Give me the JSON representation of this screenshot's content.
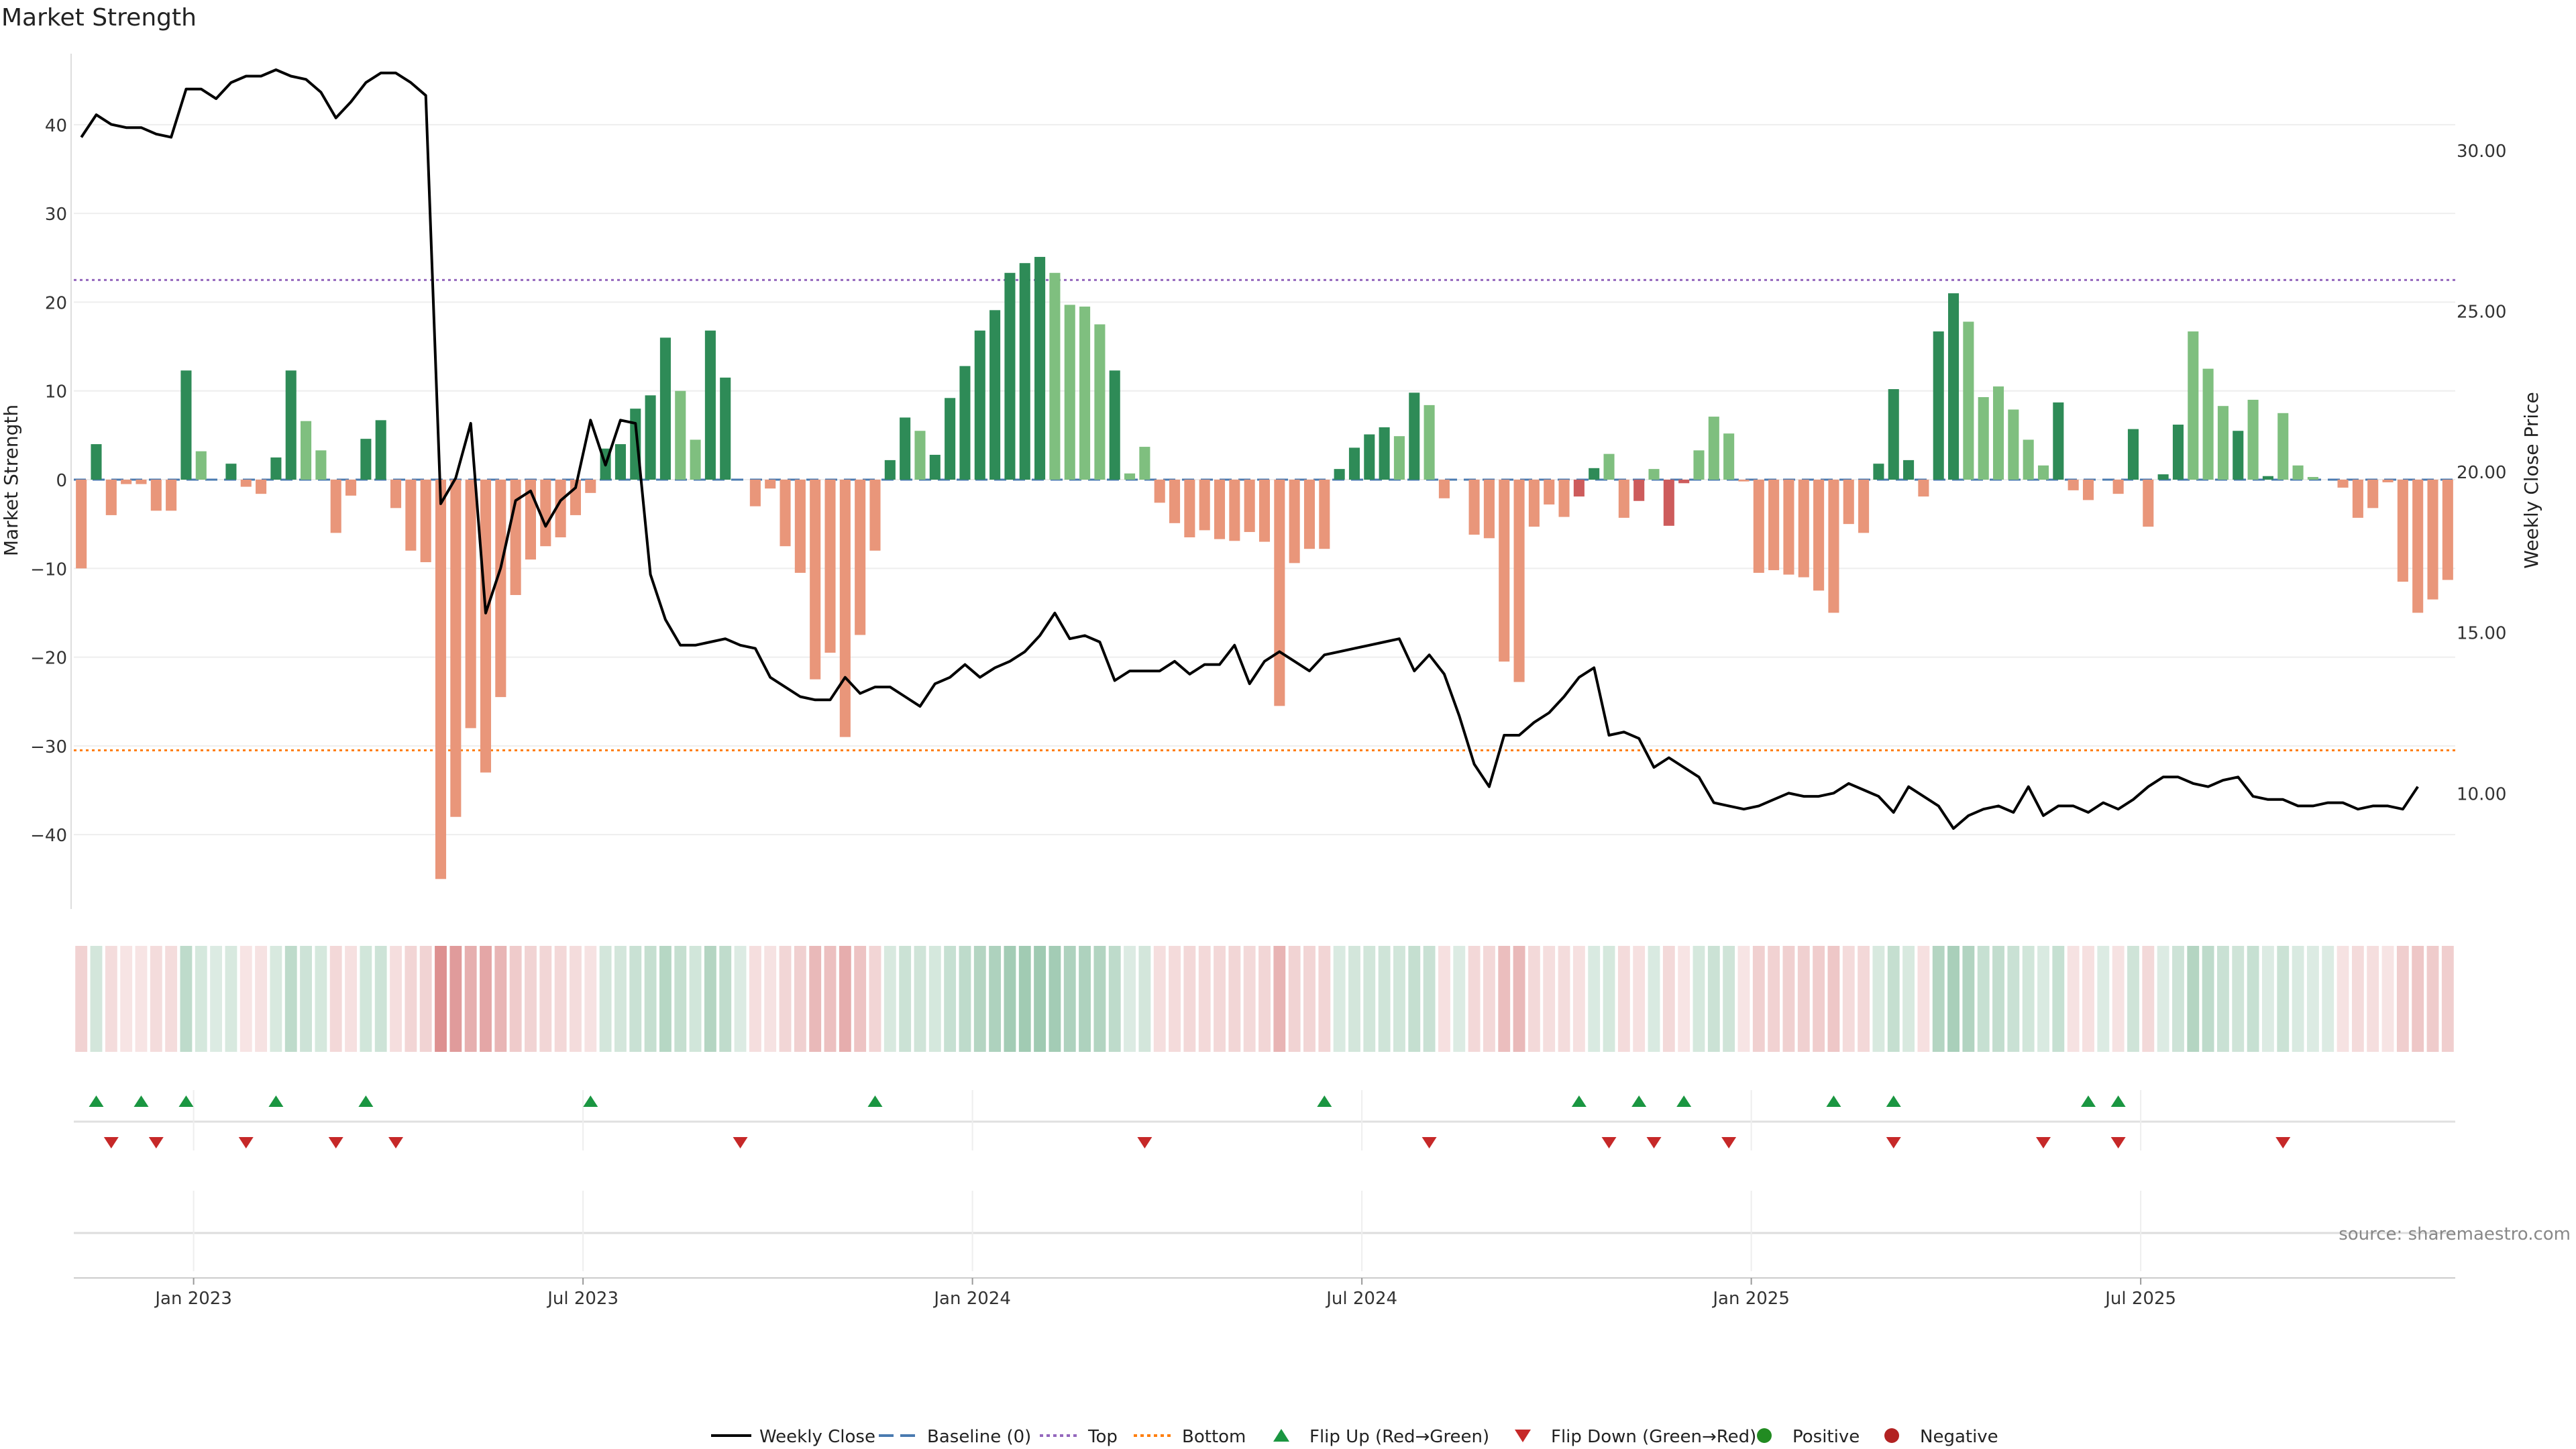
{
  "title": "Market Strength",
  "source_label": "source: sharemaestro.com",
  "colors": {
    "strong_green": "#2e8b57",
    "light_green": "#7fbf7f",
    "strong_red": "#cd5c5c",
    "light_red": "#e9967a",
    "price_line": "#000000",
    "baseline": "#4a7ab0",
    "top_line": "#9467bd",
    "bottom_line": "#ff7f0e",
    "flip_up": "#1a9641",
    "flip_down": "#c62828",
    "positive": "#228b22",
    "negative": "#b22222"
  },
  "legend": [
    {
      "label": "Weekly Close",
      "icon": "solid-line",
      "color": "#000000"
    },
    {
      "label": "Baseline (0)",
      "icon": "dashed-line",
      "color": "#4a7ab0"
    },
    {
      "label": "Top",
      "icon": "dotted-line",
      "color": "#9467bd"
    },
    {
      "label": "Bottom",
      "icon": "dotted-line",
      "color": "#ff7f0e"
    },
    {
      "label": "Flip Up (Red→Green)",
      "icon": "triangle-up",
      "color": "#1a9641"
    },
    {
      "label": "Flip Down (Green→Red)",
      "icon": "triangle-down",
      "color": "#c62828"
    },
    {
      "label": "Positive",
      "icon": "circle",
      "color": "#228b22"
    },
    {
      "label": "Negative",
      "icon": "circle",
      "color": "#b22222"
    }
  ],
  "chart_data": {
    "type": "bar",
    "title": "Market Strength",
    "ylabel": "Market Strength",
    "y2label": "Weekly Close Price",
    "ylim": [
      -48,
      48
    ],
    "y2lim": [
      6.5,
      33
    ],
    "yticks": [
      -40,
      -30,
      -20,
      -10,
      0,
      10,
      20,
      30,
      40
    ],
    "y2ticks": [
      "10.00",
      "15.00",
      "20.00",
      "25.00",
      "30.00"
    ],
    "top_level": 22.5,
    "bottom_level": -30.5,
    "x_ticks": [
      {
        "label": "Jan 2023",
        "week": 7.5
      },
      {
        "label": "Jul 2023",
        "week": 33.5
      },
      {
        "label": "Jan 2024",
        "week": 59.5
      },
      {
        "label": "Jul 2024",
        "week": 85.5
      },
      {
        "label": "Jan 2025",
        "week": 111.5
      },
      {
        "label": "Jul 2025",
        "week": 137.5
      }
    ],
    "series": [
      {
        "name": "Market Strength",
        "values": [
          -10,
          4,
          -4,
          -0.5,
          -0.5,
          -3.5,
          -3.5,
          12.3,
          3.2,
          0,
          1.8,
          -0.8,
          -1.6,
          2.5,
          12.3,
          6.6,
          3.3,
          -6,
          -1.8,
          4.6,
          6.7,
          -3.2,
          -8,
          -9.3,
          -45,
          -38,
          -28,
          -33,
          -24.5,
          -13,
          -9,
          -7.5,
          -6.5,
          -4,
          -1.5,
          3.5,
          4,
          8,
          9.5,
          16,
          10,
          4.5,
          16.8,
          11.5,
          0,
          -3,
          -1,
          -7.5,
          -10.5,
          -22.5,
          -19.5,
          -29,
          -17.5,
          -8,
          2.2,
          7,
          5.5,
          2.8,
          9.2,
          12.8,
          16.8,
          19.1,
          23.3,
          24.4,
          25.1,
          23.3,
          19.7,
          19.5,
          17.5,
          12.3,
          0.7,
          3.7,
          -2.6,
          -4.9,
          -6.5,
          -5.7,
          -6.7,
          -6.9,
          -5.9,
          -7,
          -25.5,
          -9.4,
          -7.8,
          -7.8,
          1.2,
          3.6,
          5.1,
          5.9,
          4.9,
          9.8,
          8.4,
          -2.1,
          0,
          -6.2,
          -6.6,
          -20.5,
          -22.8,
          -5.3,
          -2.8,
          -4.2,
          -1.9,
          1.3,
          2.9,
          -4.3,
          -2.4,
          1.2,
          -5.2,
          -0.4,
          3.3,
          7.1,
          5.2,
          -0.2,
          -10.5,
          -10.2,
          -10.7,
          -11,
          -12.5,
          -15,
          -5,
          -6,
          1.8,
          10.2,
          2.2,
          -1.9,
          16.7,
          21,
          17.8,
          9.3,
          10.5,
          7.9,
          4.5,
          1.6,
          8.7,
          -1.2,
          -2.3,
          0,
          -1.6,
          5.7,
          -5.3,
          0.6,
          6.2,
          16.7,
          12.5,
          8.3,
          5.5,
          9,
          0.4,
          7.5,
          1.6,
          0.3,
          0,
          -0.9,
          -4.3,
          -3.2,
          -0.3,
          -11.5,
          -15,
          -13.5,
          -11.3
        ],
        "kinds": "LGLLLLLGLGGLLGGLLLLGGLLLLLLLLLLLLLLGGGGGLLGGGLLLLLLLLLGGLGGGGGGGGLLLLGLLLLLLLLLLLLLLGGGGLGLLLLLLLLLLGGLLGLGGLLLLLLLLLLLLGGGLGGLLLLLLGLLLLGLGGLLLGLGLLLLLLLLLLL"
      },
      {
        "name": "Weekly Close",
        "values": [
          30.4,
          31.1,
          30.8,
          30.7,
          30.7,
          30.5,
          30.4,
          31.9,
          31.9,
          31.6,
          32.1,
          32.3,
          32.3,
          32.5,
          32.3,
          32.2,
          31.8,
          31,
          31.5,
          32.1,
          32.4,
          32.4,
          32.1,
          31.7,
          19,
          19.8,
          21.5,
          15.6,
          17,
          19.1,
          19.4,
          18.3,
          19.1,
          19.5,
          21.6,
          20.2,
          21.6,
          21.5,
          16.8,
          15.4,
          14.6,
          14.6,
          14.7,
          14.8,
          14.6,
          14.5,
          13.6,
          13.3,
          13,
          12.9,
          12.9,
          13.6,
          13.1,
          13.3,
          13.3,
          13,
          12.7,
          13.4,
          13.6,
          14,
          13.6,
          13.9,
          14.1,
          14.4,
          14.9,
          15.6,
          14.8,
          14.9,
          14.7,
          13.5,
          13.8,
          13.8,
          13.8,
          14.1,
          13.7,
          14,
          14,
          14.6,
          13.4,
          14.1,
          14.4,
          14.1,
          13.8,
          14.3,
          14.4,
          14.5,
          14.6,
          14.7,
          14.8,
          13.8,
          14.3,
          13.7,
          12.4,
          10.9,
          10.2,
          11.8,
          11.8,
          12.2,
          12.5,
          13,
          13.6,
          13.9,
          11.8,
          11.9,
          11.7,
          10.8,
          11.1,
          10.8,
          10.5,
          9.7,
          9.6,
          9.5,
          9.6,
          9.8,
          10,
          9.9,
          9.9,
          10,
          10.3,
          10.1,
          9.9,
          9.4,
          10.2,
          9.9,
          9.6,
          8.9,
          9.3,
          9.5,
          9.6,
          9.4,
          10.2,
          9.3,
          9.6,
          9.6,
          9.4,
          9.7,
          9.5,
          9.8,
          10.2,
          10.5,
          10.5,
          10.3,
          10.2,
          10.4,
          10.5,
          9.9,
          9.8,
          9.8,
          9.6,
          9.6,
          9.7,
          9.7,
          9.5,
          9.6,
          9.6,
          9.5,
          10.2
        ]
      }
    ],
    "flip_up_weeks": [
      1,
      4,
      7,
      13,
      19,
      34,
      53,
      83,
      100,
      104,
      107,
      117,
      121,
      134,
      136
    ],
    "flip_down_weeks": [
      2,
      5,
      11,
      17,
      21,
      44,
      71,
      90,
      102,
      105,
      110,
      121,
      131,
      136,
      147
    ]
  }
}
